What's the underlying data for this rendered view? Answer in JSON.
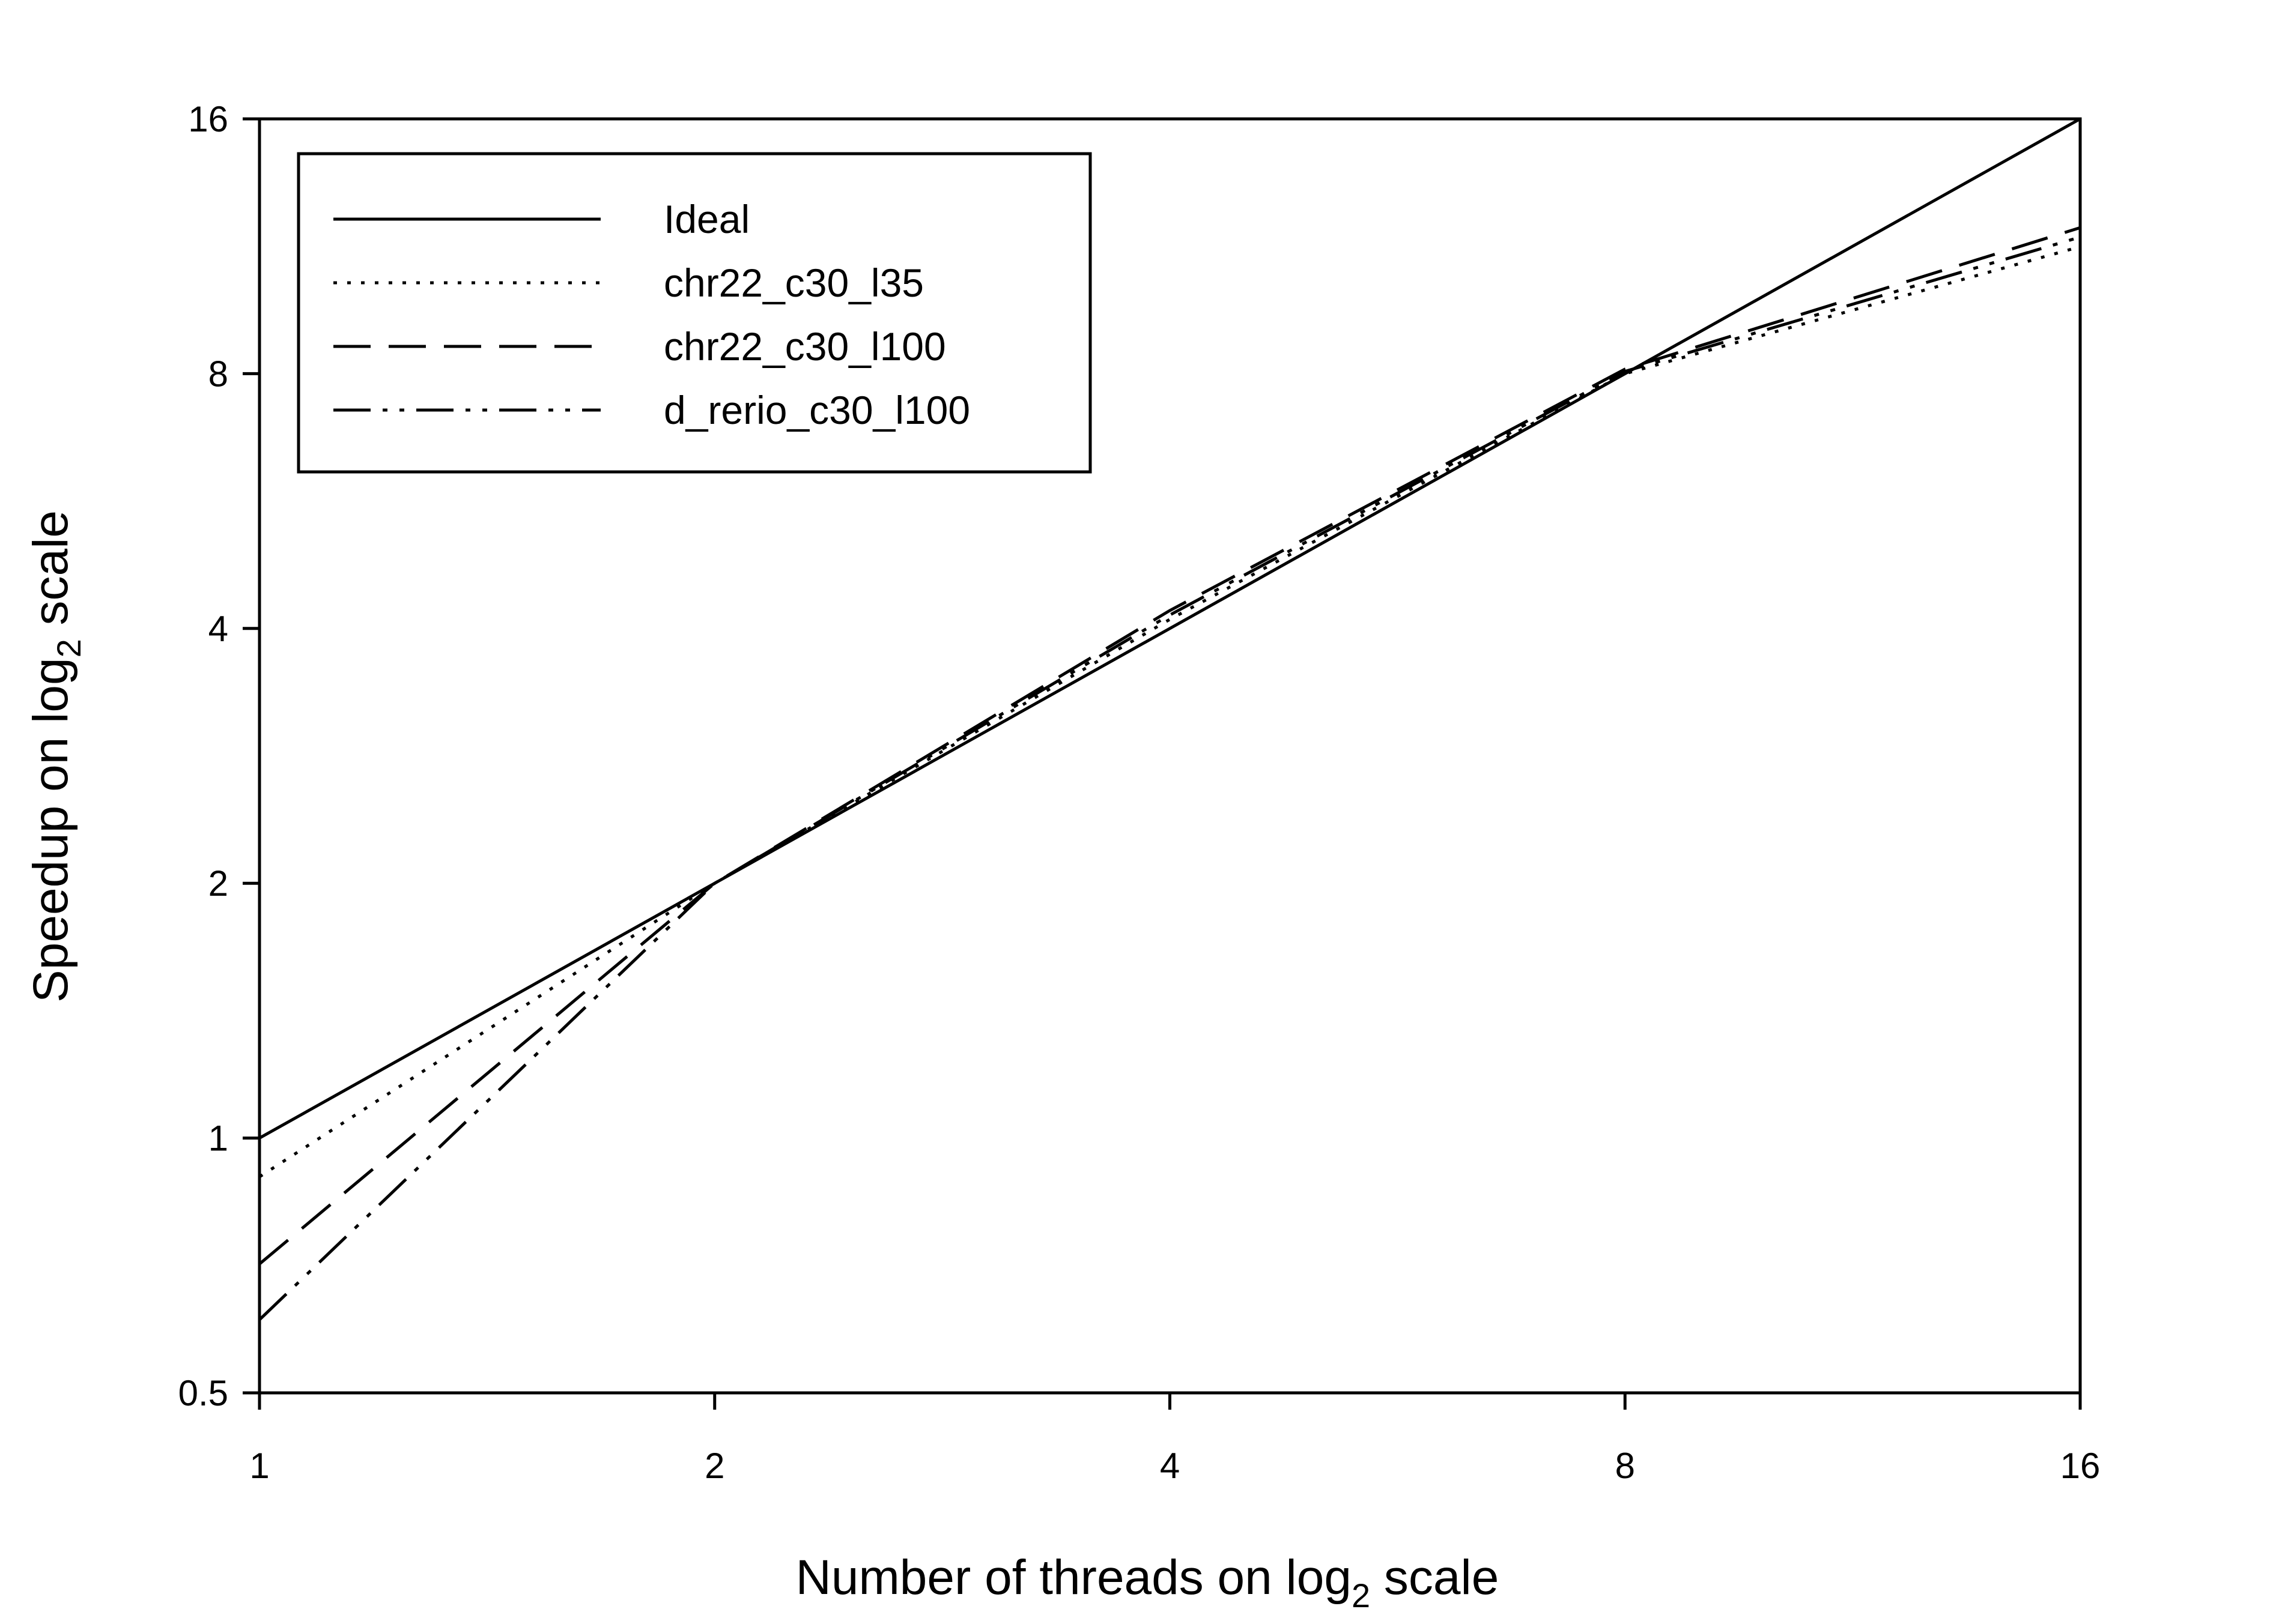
{
  "chart_data": {
    "type": "line",
    "title": "",
    "xlabel": {
      "main": "Number of threads on log",
      "sub": "2",
      "tail": " scale"
    },
    "ylabel": {
      "main": "Speedup on log",
      "sub": "2",
      "tail": " scale"
    },
    "xscale": "log2",
    "yscale": "log2",
    "xlim": [
      1,
      16
    ],
    "ylim": [
      0.5,
      16
    ],
    "xticks": [
      "1",
      "2",
      "4",
      "8",
      "16"
    ],
    "yticks": [
      "0.5",
      "1",
      "2",
      "4",
      "8",
      "16"
    ],
    "grid": false,
    "legend_position": "top-left",
    "x": [
      1,
      2,
      4,
      8,
      16
    ],
    "series": [
      {
        "name": "Ideal",
        "style": "solid",
        "values": [
          1,
          2,
          4,
          8,
          16
        ]
      },
      {
        "name": "chr22_c30_l35",
        "style": "dotted",
        "values": [
          0.9,
          2,
          4.1,
          8.0,
          11.3
        ]
      },
      {
        "name": "chr22_c30_l100",
        "style": "dashed",
        "values": [
          0.71,
          2,
          4.2,
          8.1,
          11.9
        ]
      },
      {
        "name": "d_rerio_c30_l100",
        "style": "dashdotdot",
        "values": [
          0.61,
          2,
          4.15,
          8.05,
          11.6
        ]
      }
    ]
  }
}
